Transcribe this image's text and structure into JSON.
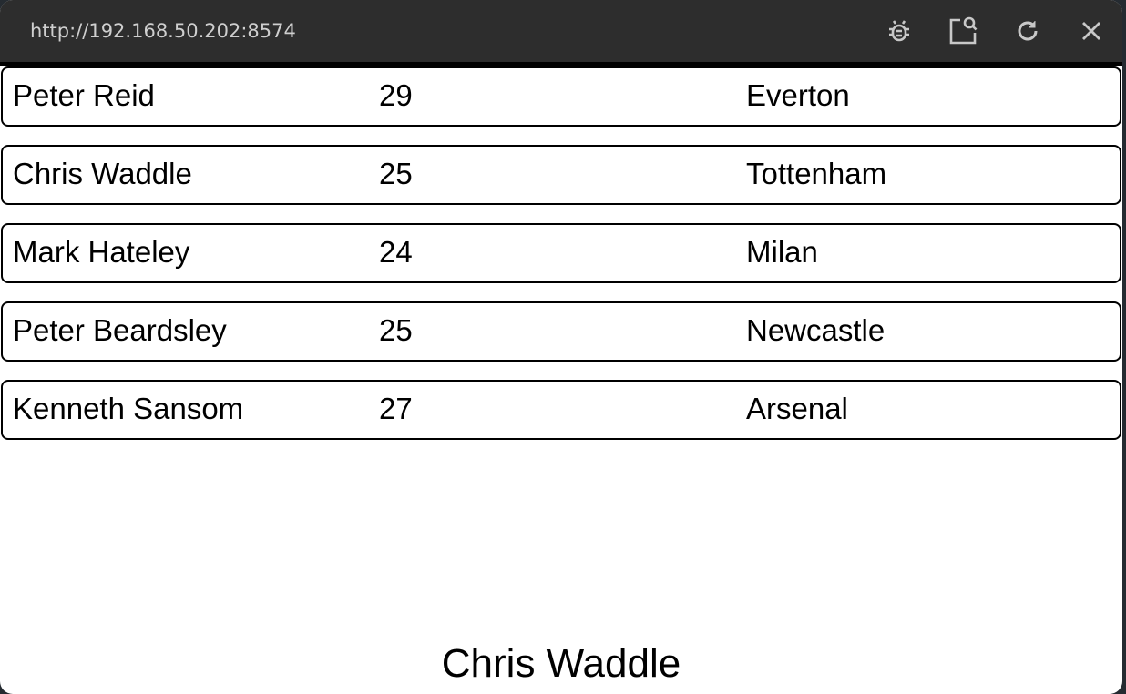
{
  "window": {
    "url": "http://192.168.50.202:8574",
    "icons": [
      "bug-icon",
      "screenshot-search-icon",
      "reload-icon",
      "close-icon"
    ]
  },
  "rows": [
    {
      "name": "Peter Reid",
      "age": "29",
      "club": "Everton"
    },
    {
      "name": "Chris Waddle",
      "age": "25",
      "club": "Tottenham"
    },
    {
      "name": "Mark Hateley",
      "age": "24",
      "club": "Milan"
    },
    {
      "name": "Peter Beardsley",
      "age": "25",
      "club": "Newcastle"
    },
    {
      "name": "Kenneth Sansom",
      "age": "27",
      "club": "Arsenal"
    }
  ],
  "selected": "Chris Waddle"
}
